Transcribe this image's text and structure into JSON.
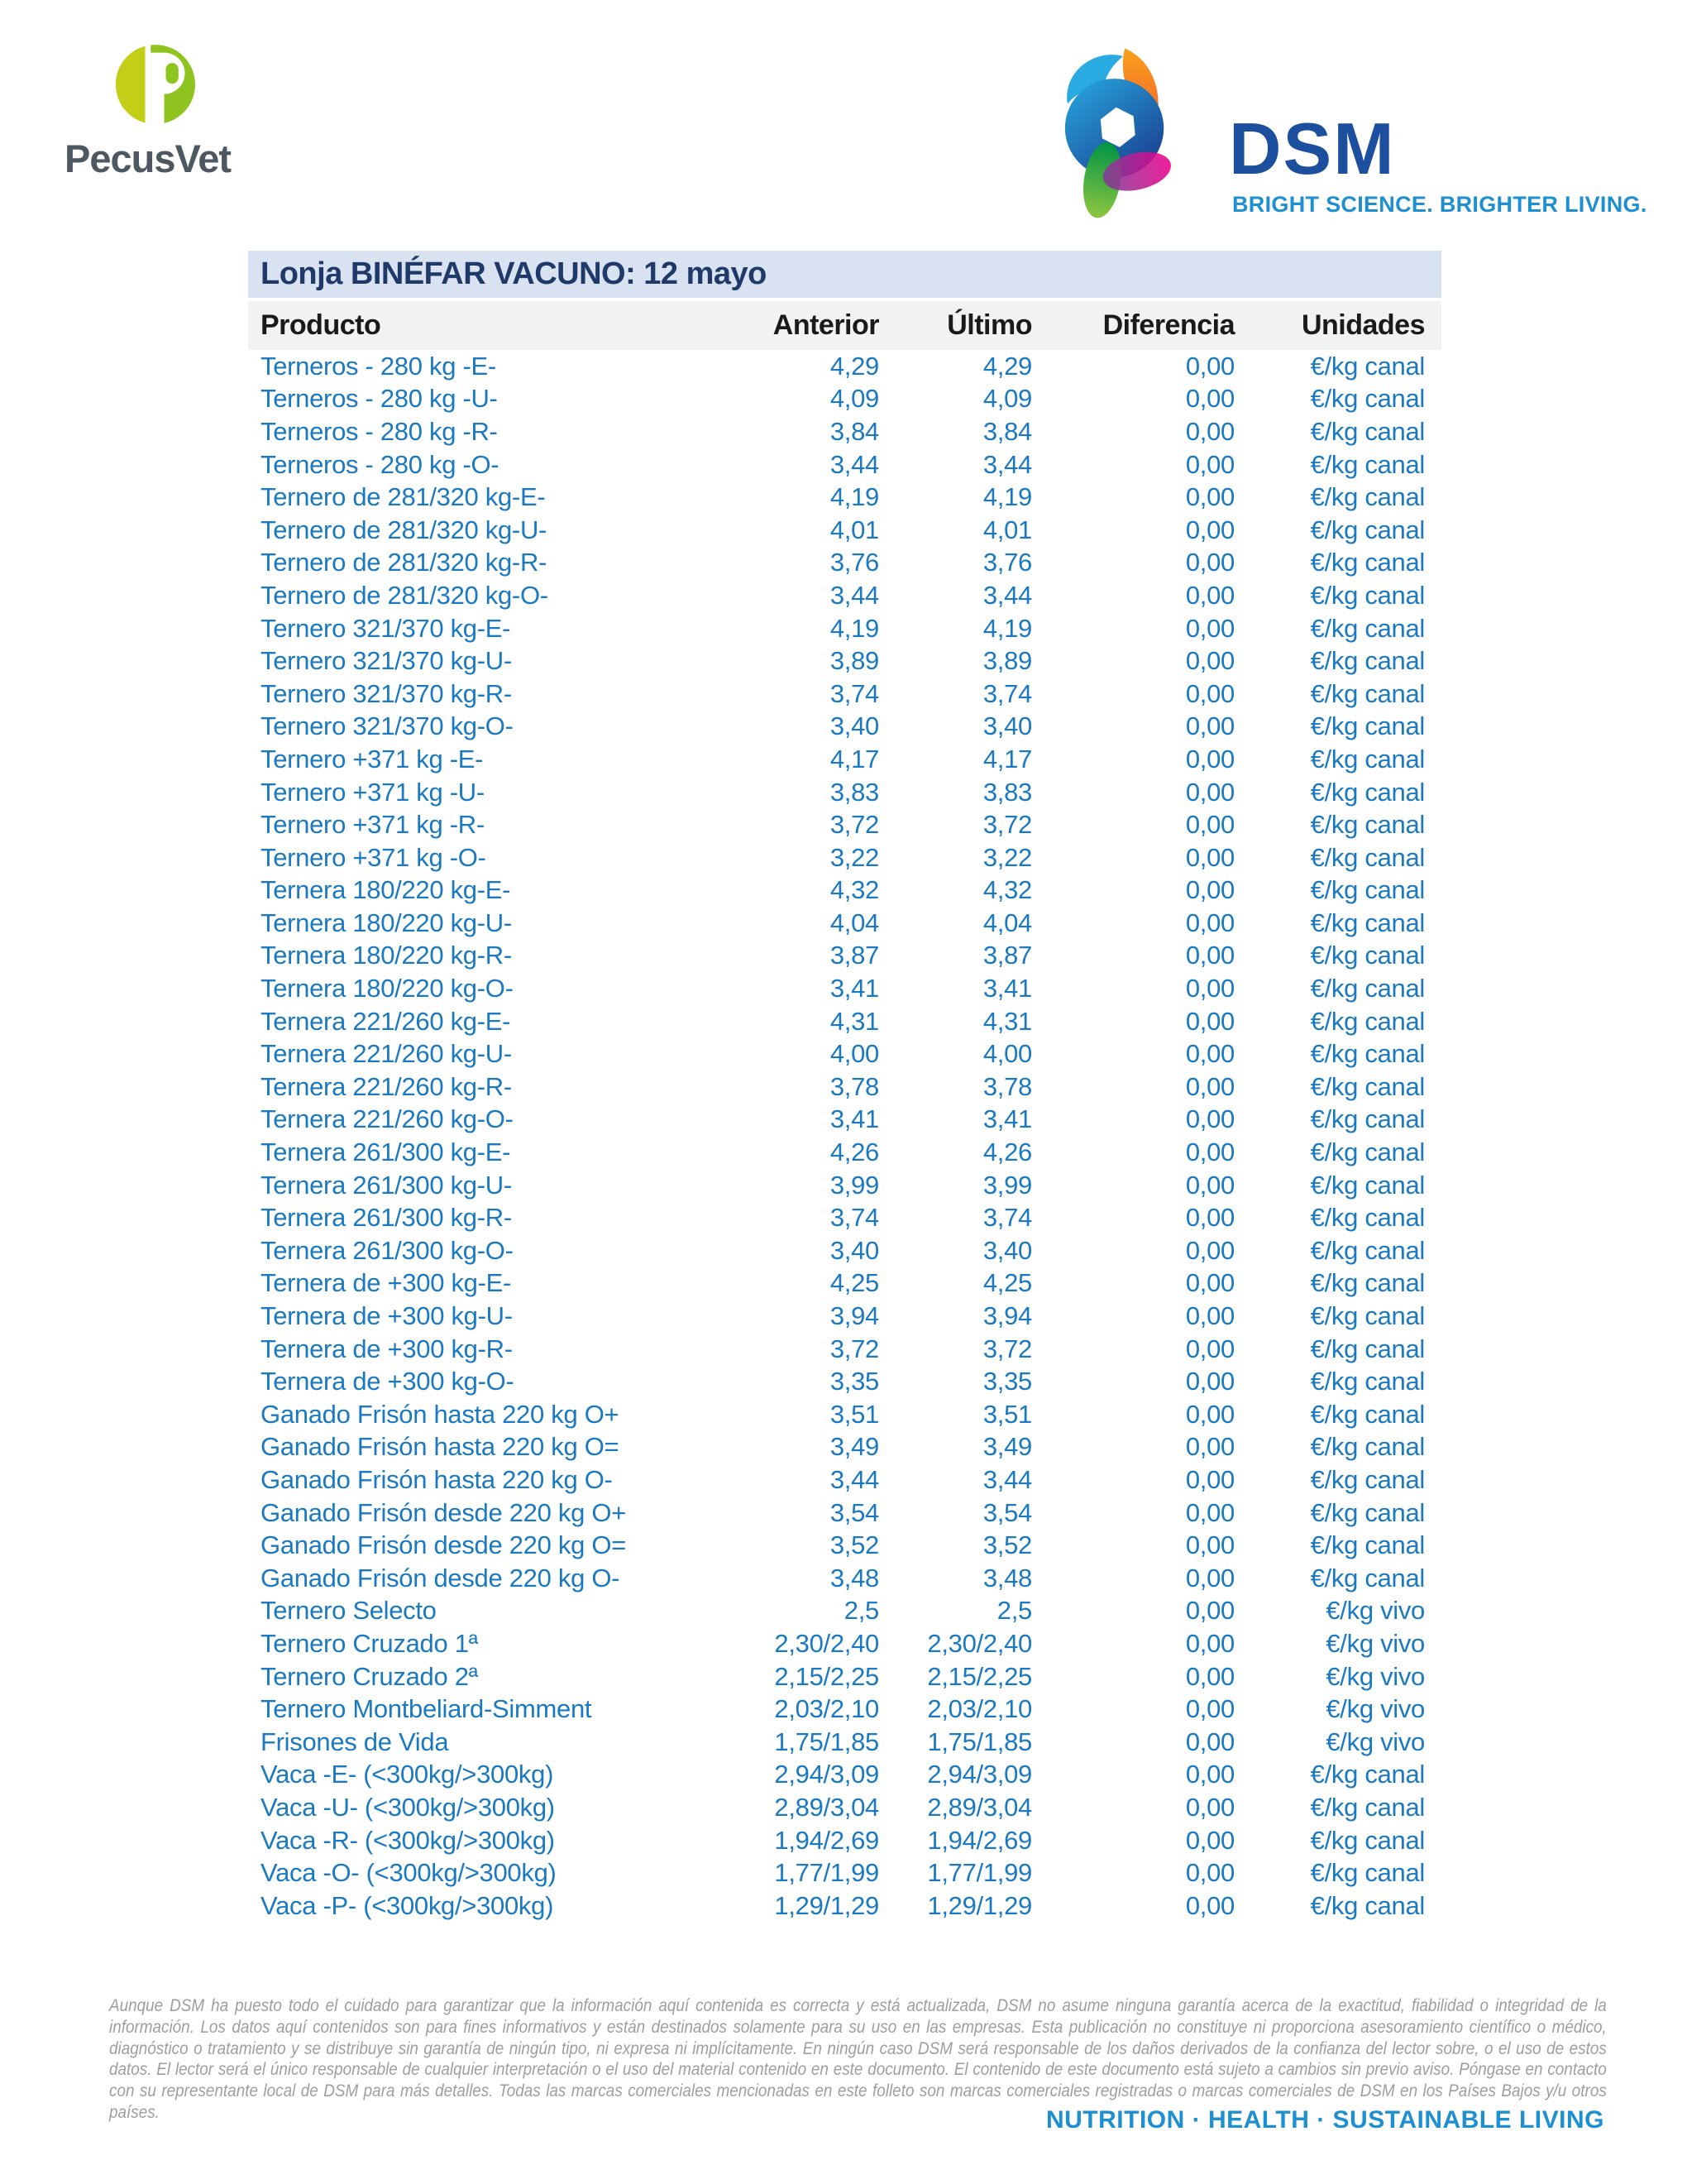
{
  "branding": {
    "pecusvet": {
      "name": "PecusVet"
    },
    "dsm": {
      "name": "DSM",
      "tagline": "BRIGHT SCIENCE. BRIGHTER LIVING."
    }
  },
  "table": {
    "title": "Lonja BINÉFAR VACUNO: 12 mayo",
    "columns": [
      "Producto",
      "Anterior",
      "Último",
      "Diferencia",
      "Unidades"
    ],
    "rows": [
      [
        "Terneros - 280 kg -E-",
        "4,29",
        "4,29",
        "0,00",
        "€/kg canal"
      ],
      [
        "Terneros - 280 kg -U-",
        "4,09",
        "4,09",
        "0,00",
        "€/kg canal"
      ],
      [
        "Terneros - 280 kg -R-",
        "3,84",
        "3,84",
        "0,00",
        "€/kg canal"
      ],
      [
        "Terneros - 280 kg -O-",
        "3,44",
        "3,44",
        "0,00",
        "€/kg canal"
      ],
      [
        "Ternero de 281/320 kg-E-",
        "4,19",
        "4,19",
        "0,00",
        "€/kg canal"
      ],
      [
        "Ternero de 281/320 kg-U-",
        "4,01",
        "4,01",
        "0,00",
        "€/kg canal"
      ],
      [
        "Ternero de 281/320 kg-R-",
        "3,76",
        "3,76",
        "0,00",
        "€/kg canal"
      ],
      [
        "Ternero de 281/320 kg-O-",
        "3,44",
        "3,44",
        "0,00",
        "€/kg canal"
      ],
      [
        "Ternero 321/370 kg-E-",
        "4,19",
        "4,19",
        "0,00",
        "€/kg canal"
      ],
      [
        "Ternero 321/370 kg-U-",
        "3,89",
        "3,89",
        "0,00",
        "€/kg canal"
      ],
      [
        "Ternero 321/370 kg-R-",
        "3,74",
        "3,74",
        "0,00",
        "€/kg canal"
      ],
      [
        "Ternero 321/370 kg-O-",
        "3,40",
        "3,40",
        "0,00",
        "€/kg canal"
      ],
      [
        "Ternero +371 kg -E-",
        "4,17",
        "4,17",
        "0,00",
        "€/kg canal"
      ],
      [
        "Ternero +371 kg -U-",
        "3,83",
        "3,83",
        "0,00",
        "€/kg canal"
      ],
      [
        "Ternero +371 kg -R-",
        "3,72",
        "3,72",
        "0,00",
        "€/kg canal"
      ],
      [
        "Ternero +371 kg -O-",
        "3,22",
        "3,22",
        "0,00",
        "€/kg canal"
      ],
      [
        "Ternera 180/220 kg-E-",
        "4,32",
        "4,32",
        "0,00",
        "€/kg canal"
      ],
      [
        "Ternera 180/220 kg-U-",
        "4,04",
        "4,04",
        "0,00",
        "€/kg canal"
      ],
      [
        "Ternera 180/220 kg-R-",
        "3,87",
        "3,87",
        "0,00",
        "€/kg canal"
      ],
      [
        "Ternera 180/220 kg-O-",
        "3,41",
        "3,41",
        "0,00",
        "€/kg canal"
      ],
      [
        "Ternera 221/260 kg-E-",
        "4,31",
        "4,31",
        "0,00",
        "€/kg canal"
      ],
      [
        "Ternera 221/260 kg-U-",
        "4,00",
        "4,00",
        "0,00",
        "€/kg canal"
      ],
      [
        "Ternera 221/260 kg-R-",
        "3,78",
        "3,78",
        "0,00",
        "€/kg canal"
      ],
      [
        "Ternera 221/260 kg-O-",
        "3,41",
        "3,41",
        "0,00",
        "€/kg canal"
      ],
      [
        "Ternera 261/300 kg-E-",
        "4,26",
        "4,26",
        "0,00",
        "€/kg canal"
      ],
      [
        "Ternera 261/300 kg-U-",
        "3,99",
        "3,99",
        "0,00",
        "€/kg canal"
      ],
      [
        "Ternera 261/300 kg-R-",
        "3,74",
        "3,74",
        "0,00",
        "€/kg canal"
      ],
      [
        "Ternera 261/300 kg-O-",
        "3,40",
        "3,40",
        "0,00",
        "€/kg canal"
      ],
      [
        "Ternera de +300 kg-E-",
        "4,25",
        "4,25",
        "0,00",
        "€/kg canal"
      ],
      [
        "Ternera de +300 kg-U-",
        "3,94",
        "3,94",
        "0,00",
        "€/kg canal"
      ],
      [
        "Ternera de +300 kg-R-",
        "3,72",
        "3,72",
        "0,00",
        "€/kg canal"
      ],
      [
        "Ternera de +300 kg-O-",
        "3,35",
        "3,35",
        "0,00",
        "€/kg canal"
      ],
      [
        "Ganado Frisón hasta 220 kg O+",
        "3,51",
        "3,51",
        "0,00",
        "€/kg canal"
      ],
      [
        "Ganado Frisón hasta 220 kg O=",
        "3,49",
        "3,49",
        "0,00",
        "€/kg canal"
      ],
      [
        "Ganado Frisón hasta 220 kg O-",
        "3,44",
        "3,44",
        "0,00",
        "€/kg canal"
      ],
      [
        "Ganado Frisón desde 220 kg O+",
        "3,54",
        "3,54",
        "0,00",
        "€/kg canal"
      ],
      [
        "Ganado Frisón desde 220 kg O=",
        "3,52",
        "3,52",
        "0,00",
        "€/kg canal"
      ],
      [
        "Ganado Frisón desde 220 kg O-",
        "3,48",
        "3,48",
        "0,00",
        "€/kg canal"
      ],
      [
        "Ternero Selecto",
        "2,5",
        "2,5",
        "0,00",
        "€/kg vivo"
      ],
      [
        "Ternero Cruzado 1ª",
        "2,30/2,40",
        "2,30/2,40",
        "0,00",
        "€/kg vivo"
      ],
      [
        "Ternero Cruzado 2ª",
        "2,15/2,25",
        "2,15/2,25",
        "0,00",
        "€/kg vivo"
      ],
      [
        "Ternero Montbeliard-Simment",
        "2,03/2,10",
        "2,03/2,10",
        "0,00",
        "€/kg vivo"
      ],
      [
        "Frisones de Vida",
        "1,75/1,85",
        "1,75/1,85",
        "0,00",
        "€/kg vivo"
      ],
      [
        "Vaca -E- (<300kg/>300kg)",
        "2,94/3,09",
        "2,94/3,09",
        "0,00",
        "€/kg canal"
      ],
      [
        "Vaca -U- (<300kg/>300kg)",
        "2,89/3,04",
        "2,89/3,04",
        "0,00",
        "€/kg canal"
      ],
      [
        "Vaca -R- (<300kg/>300kg)",
        "1,94/2,69",
        "1,94/2,69",
        "0,00",
        "€/kg canal"
      ],
      [
        "Vaca -O- (<300kg/>300kg)",
        "1,77/1,99",
        "1,77/1,99",
        "0,00",
        "€/kg canal"
      ],
      [
        "Vaca -P- (<300kg/>300kg)",
        "1,29/1,29",
        "1,29/1,29",
        "0,00",
        "€/kg canal"
      ]
    ]
  },
  "footer": {
    "disclaimer": "Aunque DSM ha puesto todo el cuidado para garantizar que la información aquí contenida es correcta y está actualizada, DSM no asume ninguna garantía acerca de la exactitud, fiabilidad o integridad de la información. Los datos aquí contenidos son para fines informativos y están destinados solamente para su uso en las empresas. Esta publicación no constituye ni proporciona asesoramiento científico o médico, diagnóstico o tratamiento y se distribuye sin garantía de ningún tipo, ni expresa ni implícitamente. En ningún caso DSM será responsable de los daños derivados de la confianza del lector sobre, o el uso de estos datos. El lector será el único responsable de cualquier interpretación o el uso del material contenido en este documento. El contenido de este documento está sujeto a cambios sin previo aviso. Póngase en contacto con su representante local de DSM para más detalles. Todas las marcas comerciales mencionadas en este folleto son marcas comerciales registradas o marcas comerciales de DSM en los Países Bajos y/u otros países.",
    "motto": "NUTRITION · HEALTH · SUSTAINABLE LIVING"
  },
  "colors": {
    "table_title_bg": "#d9e2f1",
    "table_title_text": "#1f3a68",
    "table_header_bg": "#f2f2f2",
    "row_text": "#1b79c2",
    "dsm_blue": "#1d4f9f",
    "dsm_light_blue": "#1e8fd0",
    "pecusvet_green": "#8fc31f",
    "pecusvet_lime": "#c3cf17",
    "pecusvet_gray": "#4e5861",
    "disclaimer_gray": "#9e9e9e"
  }
}
